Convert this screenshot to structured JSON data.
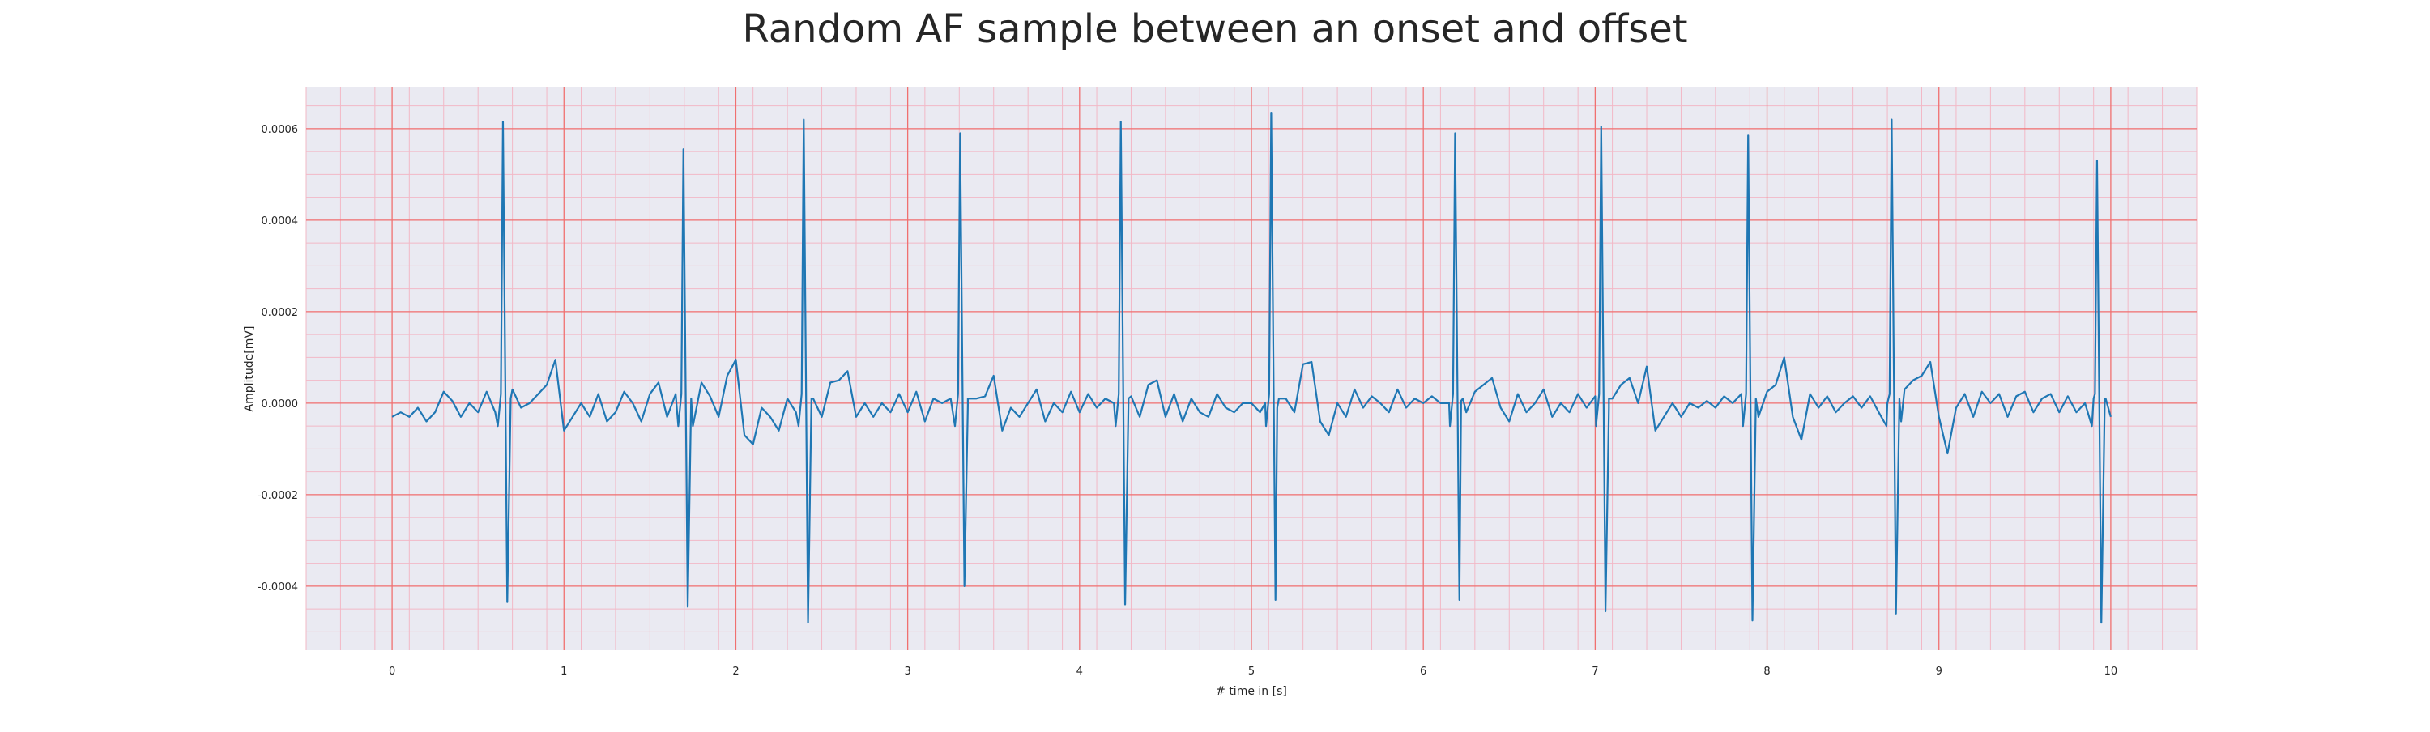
{
  "chart_data": {
    "type": "line",
    "title": "Random AF sample between an onset and offset",
    "xlabel": "# time in [s]",
    "ylabel": "Amplitude[mV]",
    "xlim": [
      -0.5,
      10.5
    ],
    "ylim": [
      -0.00054,
      0.00069
    ],
    "x_ticks": [
      0,
      1,
      2,
      3,
      4,
      5,
      6,
      7,
      8,
      9,
      10
    ],
    "x_tick_labels": [
      "0",
      "1",
      "2",
      "3",
      "4",
      "5",
      "6",
      "7",
      "8",
      "9",
      "10"
    ],
    "y_ticks": [
      -0.0004,
      -0.0002,
      0.0,
      0.0002,
      0.0004,
      0.0006
    ],
    "y_tick_labels": [
      "-0.0004",
      "-0.0002",
      "0.0000",
      "0.0002",
      "0.0004",
      "0.0006"
    ],
    "grid": true,
    "minor_grid": true,
    "colors": {
      "line": "#1f77b4",
      "background": "#eaeaf2",
      "major_grid": "#f07070",
      "minor_grid": "#f2b8c6",
      "text": "#262626"
    },
    "series": [
      {
        "line_color": "#1f77b4",
        "beats": [
          {
            "t": 0.645,
            "r": 0.000615,
            "s": -0.000435
          },
          {
            "t": 1.695,
            "r": 0.000555,
            "s": -0.000445
          },
          {
            "t": 2.395,
            "r": 0.00062,
            "s": -0.00048
          },
          {
            "t": 3.305,
            "r": 0.00059,
            "s": -0.0004
          },
          {
            "t": 4.24,
            "r": 0.000615,
            "s": -0.00044
          },
          {
            "t": 5.115,
            "r": 0.000635,
            "s": -0.00043
          },
          {
            "t": 6.185,
            "r": 0.00059,
            "s": -0.00043
          },
          {
            "t": 7.035,
            "r": 0.000605,
            "s": -0.000455
          },
          {
            "t": 7.89,
            "r": 0.000585,
            "s": -0.000475
          },
          {
            "t": 8.725,
            "r": 0.00062,
            "s": -0.00046
          },
          {
            "t": 9.92,
            "r": 0.00053,
            "s": -0.00048
          }
        ],
        "baseline": [
          [
            0.0,
            -3e-05
          ],
          [
            0.05,
            -2e-05
          ],
          [
            0.1,
            -3e-05
          ],
          [
            0.15,
            -1e-05
          ],
          [
            0.2,
            -4e-05
          ],
          [
            0.25,
            -2e-05
          ],
          [
            0.3,
            2.5e-05
          ],
          [
            0.35,
            5e-06
          ],
          [
            0.4,
            -3e-05
          ],
          [
            0.45,
            0.0
          ],
          [
            0.5,
            -2e-05
          ],
          [
            0.55,
            2.5e-05
          ],
          [
            0.6,
            -2e-05
          ],
          [
            0.7,
            3e-05
          ],
          [
            0.75,
            -1e-05
          ],
          [
            0.8,
            0.0
          ],
          [
            0.85,
            2e-05
          ],
          [
            0.9,
            4e-05
          ],
          [
            0.95,
            9.5e-05
          ],
          [
            1.0,
            -6e-05
          ],
          [
            1.05,
            -3e-05
          ],
          [
            1.1,
            0.0
          ],
          [
            1.15,
            -3e-05
          ],
          [
            1.2,
            2e-05
          ],
          [
            1.25,
            -4e-05
          ],
          [
            1.3,
            -2e-05
          ],
          [
            1.35,
            2.5e-05
          ],
          [
            1.4,
            0.0
          ],
          [
            1.45,
            -4e-05
          ],
          [
            1.5,
            2e-05
          ],
          [
            1.55,
            4.5e-05
          ],
          [
            1.6,
            -3e-05
          ],
          [
            1.65,
            2e-05
          ],
          [
            1.75,
            -5e-05
          ],
          [
            1.8,
            4.5e-05
          ],
          [
            1.85,
            1.5e-05
          ],
          [
            1.9,
            -3e-05
          ],
          [
            1.95,
            6e-05
          ],
          [
            2.0,
            9.5e-05
          ],
          [
            2.05,
            -7e-05
          ],
          [
            2.1,
            -9e-05
          ],
          [
            2.15,
            -1e-05
          ],
          [
            2.2,
            -3e-05
          ],
          [
            2.25,
            -6e-05
          ],
          [
            2.3,
            1e-05
          ],
          [
            2.35,
            -2e-05
          ],
          [
            2.45,
            1e-05
          ],
          [
            2.5,
            -3e-05
          ],
          [
            2.55,
            4.5e-05
          ],
          [
            2.6,
            5e-05
          ],
          [
            2.65,
            7e-05
          ],
          [
            2.7,
            -3e-05
          ],
          [
            2.75,
            0.0
          ],
          [
            2.8,
            -3e-05
          ],
          [
            2.85,
            0.0
          ],
          [
            2.9,
            -2e-05
          ],
          [
            2.95,
            2e-05
          ],
          [
            3.0,
            -2e-05
          ],
          [
            3.05,
            2.5e-05
          ],
          [
            3.1,
            -4e-05
          ],
          [
            3.15,
            1e-05
          ],
          [
            3.2,
            0.0
          ],
          [
            3.25,
            1e-05
          ],
          [
            3.35,
            -5e-06
          ],
          [
            3.4,
            1e-05
          ],
          [
            3.45,
            1.5e-05
          ],
          [
            3.5,
            6e-05
          ],
          [
            3.55,
            -6e-05
          ],
          [
            3.6,
            -1e-05
          ],
          [
            3.65,
            -3e-05
          ],
          [
            3.7,
            0.0
          ],
          [
            3.75,
            3e-05
          ],
          [
            3.8,
            -4e-05
          ],
          [
            3.85,
            0.0
          ],
          [
            3.9,
            -2e-05
          ],
          [
            3.95,
            2.5e-05
          ],
          [
            4.0,
            -2e-05
          ],
          [
            4.05,
            2e-05
          ],
          [
            4.1,
            -1e-05
          ],
          [
            4.15,
            1e-05
          ],
          [
            4.2,
            0.0
          ],
          [
            4.3,
            1.5e-05
          ],
          [
            4.35,
            -3e-05
          ],
          [
            4.4,
            4e-05
          ],
          [
            4.45,
            5e-05
          ],
          [
            4.5,
            -3e-05
          ],
          [
            4.55,
            2e-05
          ],
          [
            4.6,
            -4e-05
          ],
          [
            4.65,
            1e-05
          ],
          [
            4.7,
            -2e-05
          ],
          [
            4.75,
            -3e-05
          ],
          [
            4.8,
            2e-05
          ],
          [
            4.85,
            -1e-05
          ],
          [
            4.9,
            -2e-05
          ],
          [
            4.95,
            0.0
          ],
          [
            5.0,
            0.0
          ],
          [
            5.05,
            -2e-05
          ],
          [
            5.08,
            0.0
          ],
          [
            5.15,
            -1e-05
          ],
          [
            5.2,
            1e-05
          ],
          [
            5.25,
            -2e-05
          ],
          [
            5.3,
            8.5e-05
          ],
          [
            5.35,
            9e-05
          ],
          [
            5.4,
            -4e-05
          ],
          [
            5.45,
            -7e-05
          ],
          [
            5.5,
            0.0
          ],
          [
            5.55,
            -3e-05
          ],
          [
            5.6,
            3e-05
          ],
          [
            5.65,
            -1e-05
          ],
          [
            5.7,
            1.5e-05
          ],
          [
            5.75,
            0.0
          ],
          [
            5.8,
            -2e-05
          ],
          [
            5.85,
            3e-05
          ],
          [
            5.9,
            -1e-05
          ],
          [
            5.95,
            1e-05
          ],
          [
            6.0,
            0.0
          ],
          [
            6.05,
            1.5e-05
          ],
          [
            6.1,
            0.0
          ],
          [
            6.15,
            0.0
          ],
          [
            6.22,
            5e-06
          ],
          [
            6.25,
            -2e-05
          ],
          [
            6.3,
            2.5e-05
          ],
          [
            6.35,
            4e-05
          ],
          [
            6.4,
            5.5e-05
          ],
          [
            6.45,
            -1e-05
          ],
          [
            6.5,
            -4e-05
          ],
          [
            6.55,
            2e-05
          ],
          [
            6.6,
            -2e-05
          ],
          [
            6.65,
            0.0
          ],
          [
            6.7,
            3e-05
          ],
          [
            6.75,
            -3e-05
          ],
          [
            6.8,
            0.0
          ],
          [
            6.85,
            -2e-05
          ],
          [
            6.9,
            2e-05
          ],
          [
            6.95,
            -1e-05
          ],
          [
            7.0,
            1.5e-05
          ],
          [
            7.08,
            -1e-05
          ],
          [
            7.1,
            1e-05
          ],
          [
            7.15,
            4e-05
          ],
          [
            7.2,
            5.5e-05
          ],
          [
            7.25,
            0.0
          ],
          [
            7.3,
            8e-05
          ],
          [
            7.35,
            -6e-05
          ],
          [
            7.4,
            -3e-05
          ],
          [
            7.45,
            0.0
          ],
          [
            7.5,
            -3e-05
          ],
          [
            7.55,
            0.0
          ],
          [
            7.6,
            -1e-05
          ],
          [
            7.65,
            5e-06
          ],
          [
            7.7,
            -1e-05
          ],
          [
            7.75,
            1.5e-05
          ],
          [
            7.8,
            0.0
          ],
          [
            7.85,
            2e-05
          ],
          [
            7.95,
            -3e-05
          ],
          [
            8.0,
            2.5e-05
          ],
          [
            8.05,
            4e-05
          ],
          [
            8.1,
            0.0001
          ],
          [
            8.15,
            -3e-05
          ],
          [
            8.2,
            -8e-05
          ],
          [
            8.25,
            2e-05
          ],
          [
            8.3,
            -1e-05
          ],
          [
            8.35,
            1.5e-05
          ],
          [
            8.4,
            -2e-05
          ],
          [
            8.45,
            0.0
          ],
          [
            8.5,
            1.5e-05
          ],
          [
            8.55,
            -1e-05
          ],
          [
            8.6,
            1.5e-05
          ],
          [
            8.65,
            -2e-05
          ],
          [
            8.7,
            0.0
          ],
          [
            8.78,
            -4e-05
          ],
          [
            8.8,
            3e-05
          ],
          [
            8.85,
            5e-05
          ],
          [
            8.9,
            6e-05
          ],
          [
            8.95,
            9e-05
          ],
          [
            9.0,
            -3e-05
          ],
          [
            9.05,
            -0.00011
          ],
          [
            9.1,
            -1e-05
          ],
          [
            9.15,
            2e-05
          ],
          [
            9.2,
            -3e-05
          ],
          [
            9.25,
            2.5e-05
          ],
          [
            9.3,
            0.0
          ],
          [
            9.35,
            2e-05
          ],
          [
            9.4,
            -3e-05
          ],
          [
            9.45,
            1.5e-05
          ],
          [
            9.5,
            2.5e-05
          ],
          [
            9.55,
            -2e-05
          ],
          [
            9.6,
            1e-05
          ],
          [
            9.65,
            2e-05
          ],
          [
            9.7,
            -2e-05
          ],
          [
            9.75,
            1.5e-05
          ],
          [
            9.8,
            -2e-05
          ],
          [
            9.85,
            0.0
          ],
          [
            9.9,
            1e-05
          ],
          [
            9.97,
            1e-05
          ],
          [
            10.0,
            -3e-05
          ]
        ]
      }
    ]
  }
}
